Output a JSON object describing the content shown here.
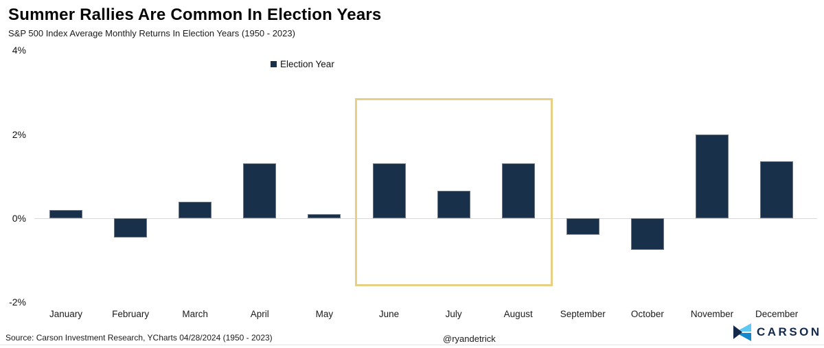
{
  "header": {
    "title": "Summer Rallies Are Common In Election Years",
    "subtitle": "S&P 500 Index Average Monthly Returns In Election Years (1950 - 2023)"
  },
  "legend": {
    "label": "Election Year"
  },
  "chart_data": {
    "type": "bar",
    "title": "Summer Rallies Are Common In Election Years",
    "subtitle": "S&P 500 Index Average Monthly Returns In Election Years (1950 - 2023)",
    "series_name": "Election Year",
    "categories": [
      "January",
      "February",
      "March",
      "April",
      "May",
      "June",
      "July",
      "August",
      "September",
      "October",
      "November",
      "December"
    ],
    "values": [
      0.2,
      -0.45,
      0.4,
      1.3,
      0.1,
      1.3,
      0.65,
      1.3,
      -0.4,
      -0.75,
      2.0,
      1.35
    ],
    "unit": "%",
    "xlabel": "",
    "ylabel": "",
    "ylim": [
      -2,
      4
    ],
    "ytick_labels": [
      "4%",
      "2%",
      "0%",
      "-2%"
    ],
    "ytick_values": [
      4,
      2,
      0,
      -2
    ],
    "grid": "zero-line-only",
    "legend_position": "top-center",
    "bar_color": "#183049",
    "highlight": {
      "categories": [
        "June",
        "July",
        "August"
      ],
      "box_color": "#e7cf85"
    }
  },
  "footer": {
    "source": "Source: Carson Investment Research, YCharts 04/28/2024 (1950 - 2023)",
    "handle": "@ryandetrick",
    "brand": "CARSON"
  },
  "colors": {
    "bar": "#183049",
    "highlight_box": "#e7cf85",
    "zero_line": "#d8d8d8",
    "logo_light_blue": "#5ec8f2",
    "logo_blue": "#1587cc",
    "logo_navy": "#13294a"
  }
}
